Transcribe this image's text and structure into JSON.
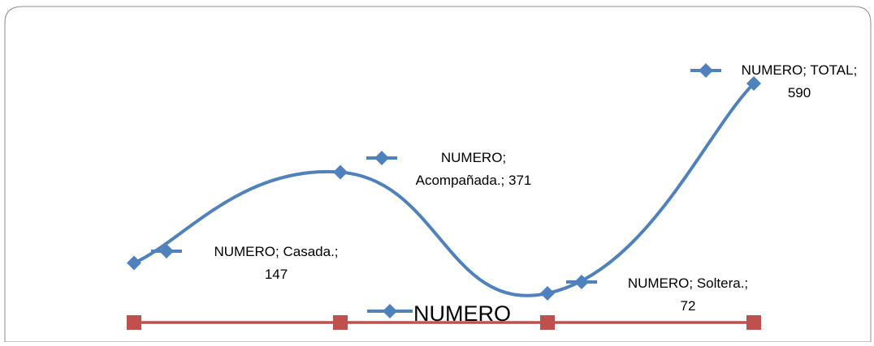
{
  "chart_data": {
    "type": "line",
    "categories": [
      "Casada.",
      "Acompañada.",
      "Soltera.",
      "TOTAL"
    ],
    "series": [
      {
        "name": "NUMERO",
        "values": [
          147,
          371,
          72,
          590
        ],
        "color": "#4F81BD",
        "marker": "diamond",
        "smooth": true,
        "data_labels": [
          [
            "NUMERO; Casada.;",
            "147"
          ],
          [
            "NUMERO;",
            "Acompañada.; 371"
          ],
          [
            "NUMERO; Soltera.;",
            "72"
          ],
          [
            "NUMERO; TOTAL;",
            "590"
          ]
        ]
      },
      {
        "values": [
          0,
          0,
          0,
          0
        ],
        "color": "#C0504D",
        "marker": "square"
      }
    ],
    "legend": {
      "label": "NUMERO",
      "position": "bottom"
    },
    "grid": false
  }
}
